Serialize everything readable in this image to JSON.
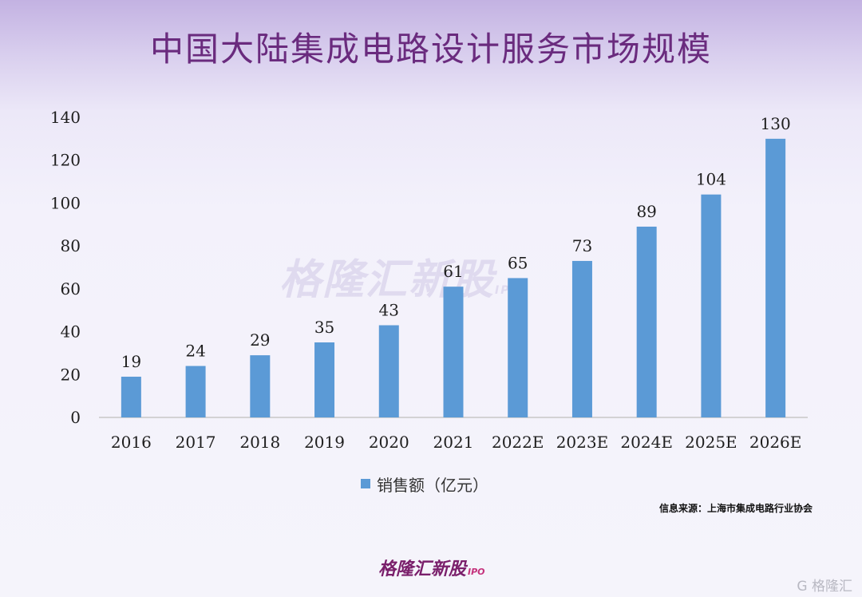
{
  "chart_data": {
    "type": "bar",
    "title": "中国大陆集成电路设计服务市场规模",
    "categories": [
      "2016",
      "2017",
      "2018",
      "2019",
      "2020",
      "2021",
      "2022E",
      "2023E",
      "2024E",
      "2025E",
      "2026E"
    ],
    "series": [
      {
        "name": "销售额（亿元）",
        "values": [
          19,
          24,
          29,
          35,
          43,
          61,
          65,
          73,
          89,
          104,
          130
        ]
      }
    ],
    "data_labels": [
      "19",
      "24",
      "29",
      "35",
      "43",
      "61",
      "65",
      "73",
      "89",
      "104",
      "130"
    ],
    "ylim": [
      0,
      140
    ],
    "yticks": [
      0,
      20,
      40,
      60,
      80,
      100,
      120,
      140
    ],
    "grid": false,
    "legend_position": "bottom-center",
    "bar_color": "#5b9ad6"
  },
  "source": "信息来源：上海市集成电路行业协会",
  "watermark": "格隆汇新股",
  "watermark_mark": "IPO",
  "logo": {
    "text": "格隆汇新股",
    "mark": "IPO"
  },
  "corner_mark": "G 格隆汇"
}
